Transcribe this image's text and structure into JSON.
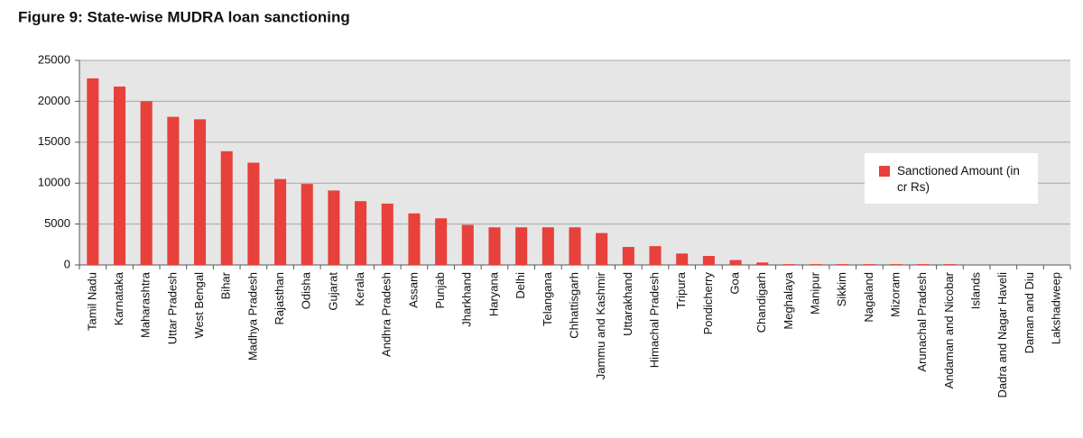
{
  "chart_data": {
    "type": "bar",
    "title": "Figure 9: State-wise MUDRA loan sanctioning",
    "categories": [
      "Tamil Nadu",
      "Karnataka",
      "Maharashtra",
      "Uttar Pradesh",
      "West Bengal",
      "Bihar",
      "Madhya Pradesh",
      "Rajasthan",
      "Odisha",
      "Gujarat",
      "Kerala",
      "Andhra Pradesh",
      "Assam",
      "Punjab",
      "Jharkhand",
      "Haryana",
      "Delhi",
      "Telangana",
      "Chhattisgarh",
      "Jammu and Kashmir",
      "Uttarakhand",
      "Himachal Pradesh",
      "Tripura",
      "Pondicherry",
      "Goa",
      "Chandigarh",
      "Meghalaya",
      "Manipur",
      "Sikkim",
      "Nagaland",
      "Mizoram",
      "Arunachal Pradesh",
      "Andaman and Nicobar",
      "Islands",
      "Dadra and Nagar Haveli",
      "Daman and Diu",
      "Lakshadweep"
    ],
    "series": [
      {
        "name": "Sanctioned Amount (in cr Rs)",
        "color": "#e8403a",
        "values": [
          22800,
          21800,
          20000,
          18100,
          17800,
          13900,
          12500,
          10500,
          9900,
          9100,
          7800,
          7500,
          6300,
          5700,
          4900,
          4600,
          4600,
          4600,
          4600,
          3900,
          2200,
          2300,
          1400,
          1100,
          600,
          300,
          100,
          100,
          100,
          100,
          100,
          100,
          100,
          0,
          0,
          0,
          0
        ]
      }
    ],
    "ylim": [
      0,
      25000
    ],
    "yticks": [
      0,
      5000,
      10000,
      15000,
      20000,
      25000
    ],
    "grid": true,
    "legend": "right"
  }
}
